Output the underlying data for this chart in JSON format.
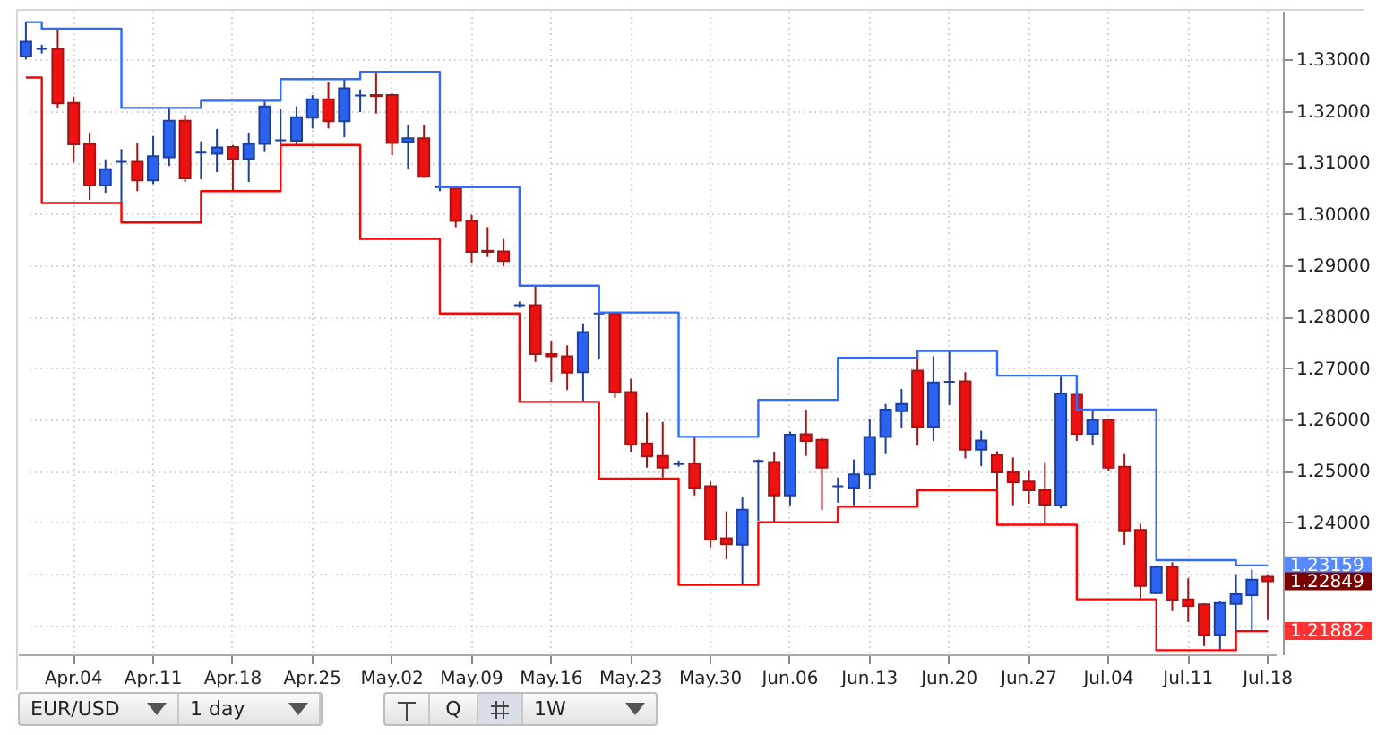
{
  "chart_data": {
    "type": "candlestick",
    "categories": [
      null,
      null,
      null,
      "Apr.04",
      null,
      null,
      null,
      null,
      "Apr.11",
      null,
      null,
      null,
      null,
      "Apr.18",
      null,
      null,
      null,
      null,
      "Apr.25",
      null,
      null,
      null,
      null,
      "May.02",
      null,
      null,
      null,
      null,
      "May.09",
      null,
      null,
      null,
      null,
      "May.16",
      null,
      null,
      null,
      null,
      "May.23",
      null,
      null,
      null,
      null,
      "May.30",
      null,
      null,
      null,
      null,
      "Jun.06",
      null,
      null,
      null,
      null,
      "Jun.13",
      null,
      null,
      null,
      null,
      "Jun.20",
      null,
      null,
      null,
      null,
      "Jun.27",
      null,
      null,
      null,
      null,
      "Jul.04",
      null,
      null,
      null,
      null,
      "Jul.11",
      null,
      null,
      null,
      null,
      "Jul.18"
    ],
    "ohlc": [
      [
        1.3306,
        1.3373,
        1.33,
        1.3335
      ],
      [
        1.3321,
        1.3329,
        1.3312,
        1.3321
      ],
      [
        1.3321,
        1.3358,
        1.3205,
        1.3215
      ],
      [
        1.3216,
        1.3228,
        1.31,
        1.3135
      ],
      [
        1.3136,
        1.3158,
        1.3027,
        1.3055
      ],
      [
        1.3055,
        1.3106,
        1.3041,
        1.3087
      ],
      [
        1.3101,
        1.3126,
        1.3021,
        1.3101
      ],
      [
        1.3101,
        1.3137,
        1.3044,
        1.3065
      ],
      [
        1.3065,
        1.3151,
        1.3058,
        1.3112
      ],
      [
        1.311,
        1.3205,
        1.3093,
        1.3181
      ],
      [
        1.3181,
        1.3192,
        1.3062,
        1.3069
      ],
      [
        1.3119,
        1.3141,
        1.3067,
        1.3119
      ],
      [
        1.3117,
        1.3165,
        1.3081,
        1.3129
      ],
      [
        1.313,
        1.3134,
        1.3044,
        1.3107
      ],
      [
        1.3107,
        1.3158,
        1.3062,
        1.3136
      ],
      [
        1.3136,
        1.3219,
        1.312,
        1.3209
      ],
      [
        1.3143,
        1.3203,
        1.3135,
        1.3143
      ],
      [
        1.3142,
        1.3209,
        1.3133,
        1.3188
      ],
      [
        1.3187,
        1.3231,
        1.3166,
        1.3223
      ],
      [
        1.3223,
        1.3256,
        1.3166,
        1.318
      ],
      [
        1.318,
        1.3262,
        1.3149,
        1.3244
      ],
      [
        1.323,
        1.3242,
        1.3198,
        1.323
      ],
      [
        1.3231,
        1.3274,
        1.3195,
        1.3229
      ],
      [
        1.3231,
        1.3234,
        1.3114,
        1.3138
      ],
      [
        1.314,
        1.3172,
        1.3086,
        1.3147
      ],
      [
        1.3147,
        1.3172,
        1.307,
        1.3072
      ],
      [
        1.3052,
        1.3055,
        1.3044,
        1.3052
      ],
      [
        1.305,
        1.3052,
        1.2974,
        1.2986
      ],
      [
        1.2986,
        1.2998,
        1.2905,
        1.2926
      ],
      [
        1.2928,
        1.2974,
        1.2916,
        1.2926
      ],
      [
        1.2927,
        1.2951,
        1.2898,
        1.2908
      ],
      [
        1.2822,
        1.2829,
        1.2817,
        1.2822
      ],
      [
        1.2822,
        1.2858,
        1.2712,
        1.2727
      ],
      [
        1.2727,
        1.2753,
        1.2673,
        1.2723
      ],
      [
        1.2723,
        1.2744,
        1.2657,
        1.2691
      ],
      [
        1.2692,
        1.2787,
        1.2636,
        1.277
      ],
      [
        1.2806,
        1.2813,
        1.2717,
        1.2806
      ],
      [
        1.2806,
        1.2809,
        1.2642,
        1.2653
      ],
      [
        1.2653,
        1.2679,
        1.2537,
        1.2551
      ],
      [
        1.2553,
        1.2613,
        1.2506,
        1.2528
      ],
      [
        1.2529,
        1.2595,
        1.2487,
        1.2506
      ],
      [
        1.2513,
        1.252,
        1.2508,
        1.2513
      ],
      [
        1.2514,
        1.2566,
        1.2452,
        1.2467
      ],
      [
        1.247,
        1.2479,
        1.2351,
        1.2366
      ],
      [
        1.2369,
        1.2421,
        1.2328,
        1.2357
      ],
      [
        1.2356,
        1.2448,
        1.2278,
        1.2424
      ],
      [
        1.2519,
        1.2522,
        1.2403,
        1.2519
      ],
      [
        1.2517,
        1.2537,
        1.2401,
        1.2452
      ],
      [
        1.2452,
        1.2576,
        1.2433,
        1.257
      ],
      [
        1.2571,
        1.2619,
        1.2529,
        1.2558
      ],
      [
        1.256,
        1.2564,
        1.2424,
        1.2506
      ],
      [
        1.247,
        1.2487,
        1.2438,
        1.247
      ],
      [
        1.2467,
        1.2522,
        1.2433,
        1.2493
      ],
      [
        1.2493,
        1.2601,
        1.2464,
        1.2566
      ],
      [
        1.2566,
        1.263,
        1.2534,
        1.2619
      ],
      [
        1.2616,
        1.2659,
        1.2583,
        1.263
      ],
      [
        1.2695,
        1.2723,
        1.2549,
        1.2586
      ],
      [
        1.2586,
        1.2723,
        1.2558,
        1.2672
      ],
      [
        1.2673,
        1.2733,
        1.2628,
        1.2673
      ],
      [
        1.2674,
        1.2692,
        1.2524,
        1.2541
      ],
      [
        1.2541,
        1.2578,
        1.2509,
        1.2559
      ],
      [
        1.2531,
        1.2538,
        1.2462,
        1.2497
      ],
      [
        1.2497,
        1.2526,
        1.2433,
        1.2478
      ],
      [
        1.2479,
        1.2501,
        1.2436,
        1.2462
      ],
      [
        1.2462,
        1.2517,
        1.2397,
        1.2434
      ],
      [
        1.2433,
        1.2683,
        1.2427,
        1.265
      ],
      [
        1.2648,
        1.2653,
        1.2558,
        1.2572
      ],
      [
        1.2572,
        1.2616,
        1.2551,
        1.2599
      ],
      [
        1.2599,
        1.2601,
        1.25,
        1.2506
      ],
      [
        1.2508,
        1.2534,
        1.2356,
        1.2384
      ],
      [
        1.2385,
        1.2397,
        1.225,
        1.2276
      ],
      [
        1.2262,
        1.2316,
        1.226,
        1.2313
      ],
      [
        1.2313,
        1.2322,
        1.2227,
        1.2249
      ],
      [
        1.225,
        1.2291,
        1.2206,
        1.2237
      ],
      [
        1.224,
        1.2242,
        1.2159,
        1.2181
      ],
      [
        1.2181,
        1.2247,
        1.2151,
        1.2243
      ],
      [
        1.2241,
        1.2299,
        1.2189,
        1.226
      ],
      [
        1.2258,
        1.2308,
        1.2189,
        1.2288
      ],
      [
        1.2294,
        1.2299,
        1.221,
        1.22849
      ]
    ],
    "series": [
      {
        "type": "step",
        "color": "#2f6bff",
        "values": [
          1.3373,
          1.336,
          1.336,
          1.336,
          1.336,
          1.336,
          1.3206,
          1.3206,
          1.3206,
          1.3206,
          1.3206,
          1.322,
          1.322,
          1.322,
          1.322,
          1.322,
          1.3262,
          1.3262,
          1.3262,
          1.3262,
          1.3262,
          1.3276,
          1.3276,
          1.3276,
          1.3276,
          1.3276,
          1.3052,
          1.3052,
          1.3052,
          1.3052,
          1.3052,
          1.286,
          1.286,
          1.286,
          1.286,
          1.286,
          1.2808,
          1.2808,
          1.2808,
          1.2808,
          1.2808,
          1.2566,
          1.2566,
          1.2566,
          1.2566,
          1.2566,
          1.2638,
          1.2638,
          1.2638,
          1.2638,
          1.2638,
          1.272,
          1.272,
          1.272,
          1.272,
          1.272,
          1.2733,
          1.2733,
          1.2733,
          1.2733,
          1.2733,
          1.2685,
          1.2685,
          1.2685,
          1.2685,
          1.2685,
          1.2619,
          1.2619,
          1.2619,
          1.2619,
          1.2619,
          1.2326,
          1.2326,
          1.2326,
          1.2326,
          1.2326,
          1.23159,
          1.23159,
          1.23159
        ],
        "value_labels": [
          null,
          null,
          null,
          null,
          null,
          null,
          null,
          null,
          null,
          null,
          null,
          null,
          null,
          null,
          null,
          null,
          null,
          null,
          null,
          null,
          null,
          null,
          null,
          null,
          null,
          null,
          null,
          null,
          null,
          null,
          null,
          null,
          null,
          null,
          null,
          null,
          null,
          null,
          null,
          null,
          null,
          null,
          null,
          null,
          null,
          null,
          null,
          null,
          null,
          null,
          null,
          null,
          null,
          null,
          null,
          null,
          null,
          null,
          null,
          null,
          null,
          null,
          null,
          null,
          null,
          null,
          null,
          null,
          null,
          null,
          null,
          null,
          null,
          null,
          null,
          null,
          null,
          null,
          "1.23159"
        ]
      },
      {
        "type": "step",
        "color": "#ff0000",
        "values": [
          1.3265,
          1.3021,
          1.3021,
          1.3021,
          1.3021,
          1.3021,
          1.2983,
          1.2983,
          1.2983,
          1.2983,
          1.2983,
          1.3044,
          1.3044,
          1.3044,
          1.3044,
          1.3044,
          1.3134,
          1.3134,
          1.3134,
          1.3134,
          1.3134,
          1.2951,
          1.2951,
          1.2951,
          1.2951,
          1.2951,
          1.2806,
          1.2806,
          1.2806,
          1.2806,
          1.2806,
          1.2634,
          1.2634,
          1.2634,
          1.2634,
          1.2634,
          1.2485,
          1.2485,
          1.2485,
          1.2485,
          1.2485,
          1.2278,
          1.2278,
          1.2278,
          1.2278,
          1.2278,
          1.24,
          1.24,
          1.24,
          1.24,
          1.24,
          1.243,
          1.243,
          1.243,
          1.243,
          1.243,
          1.2462,
          1.2462,
          1.2462,
          1.2462,
          1.2462,
          1.2395,
          1.2395,
          1.2395,
          1.2395,
          1.2395,
          1.225,
          1.225,
          1.225,
          1.225,
          1.225,
          1.2151,
          1.2151,
          1.2151,
          1.2151,
          1.2151,
          1.21882,
          1.21882,
          1.21882
        ],
        "value_labels": [
          null,
          null,
          null,
          null,
          null,
          null,
          null,
          null,
          null,
          null,
          null,
          null,
          null,
          null,
          null,
          null,
          null,
          null,
          null,
          null,
          null,
          null,
          null,
          null,
          null,
          null,
          null,
          null,
          null,
          null,
          null,
          null,
          null,
          null,
          null,
          null,
          null,
          null,
          null,
          null,
          null,
          null,
          null,
          null,
          null,
          null,
          null,
          null,
          null,
          null,
          null,
          null,
          null,
          null,
          null,
          null,
          null,
          null,
          null,
          null,
          null,
          null,
          null,
          null,
          null,
          null,
          null,
          null,
          null,
          null,
          null,
          null,
          null,
          null,
          null,
          null,
          null,
          null,
          "1.21882"
        ]
      }
    ],
    "ylim": [
      1.2143,
      1.3395
    ],
    "yticks": [
      {
        "value": 1.22,
        "label": null
      },
      {
        "value": 1.23,
        "label": null
      },
      {
        "value": 1.24,
        "label": "1.24000"
      },
      {
        "value": 1.25,
        "label": "1.25000"
      },
      {
        "value": 1.26,
        "label": "1.26000"
      },
      {
        "value": 1.27,
        "label": "1.27000"
      },
      {
        "value": 1.28,
        "label": "1.28000"
      },
      {
        "value": 1.29,
        "label": "1.29000"
      },
      {
        "value": 1.3,
        "label": "1.30000"
      },
      {
        "value": 1.31,
        "label": "1.31000"
      },
      {
        "value": 1.32,
        "label": "1.32000"
      },
      {
        "value": 1.33,
        "label": "1.33000"
      }
    ],
    "annotations": [
      "EUR/USD",
      "1 day",
      "Q",
      "1W",
      "1.22849"
    ],
    "grid": true
  }
}
